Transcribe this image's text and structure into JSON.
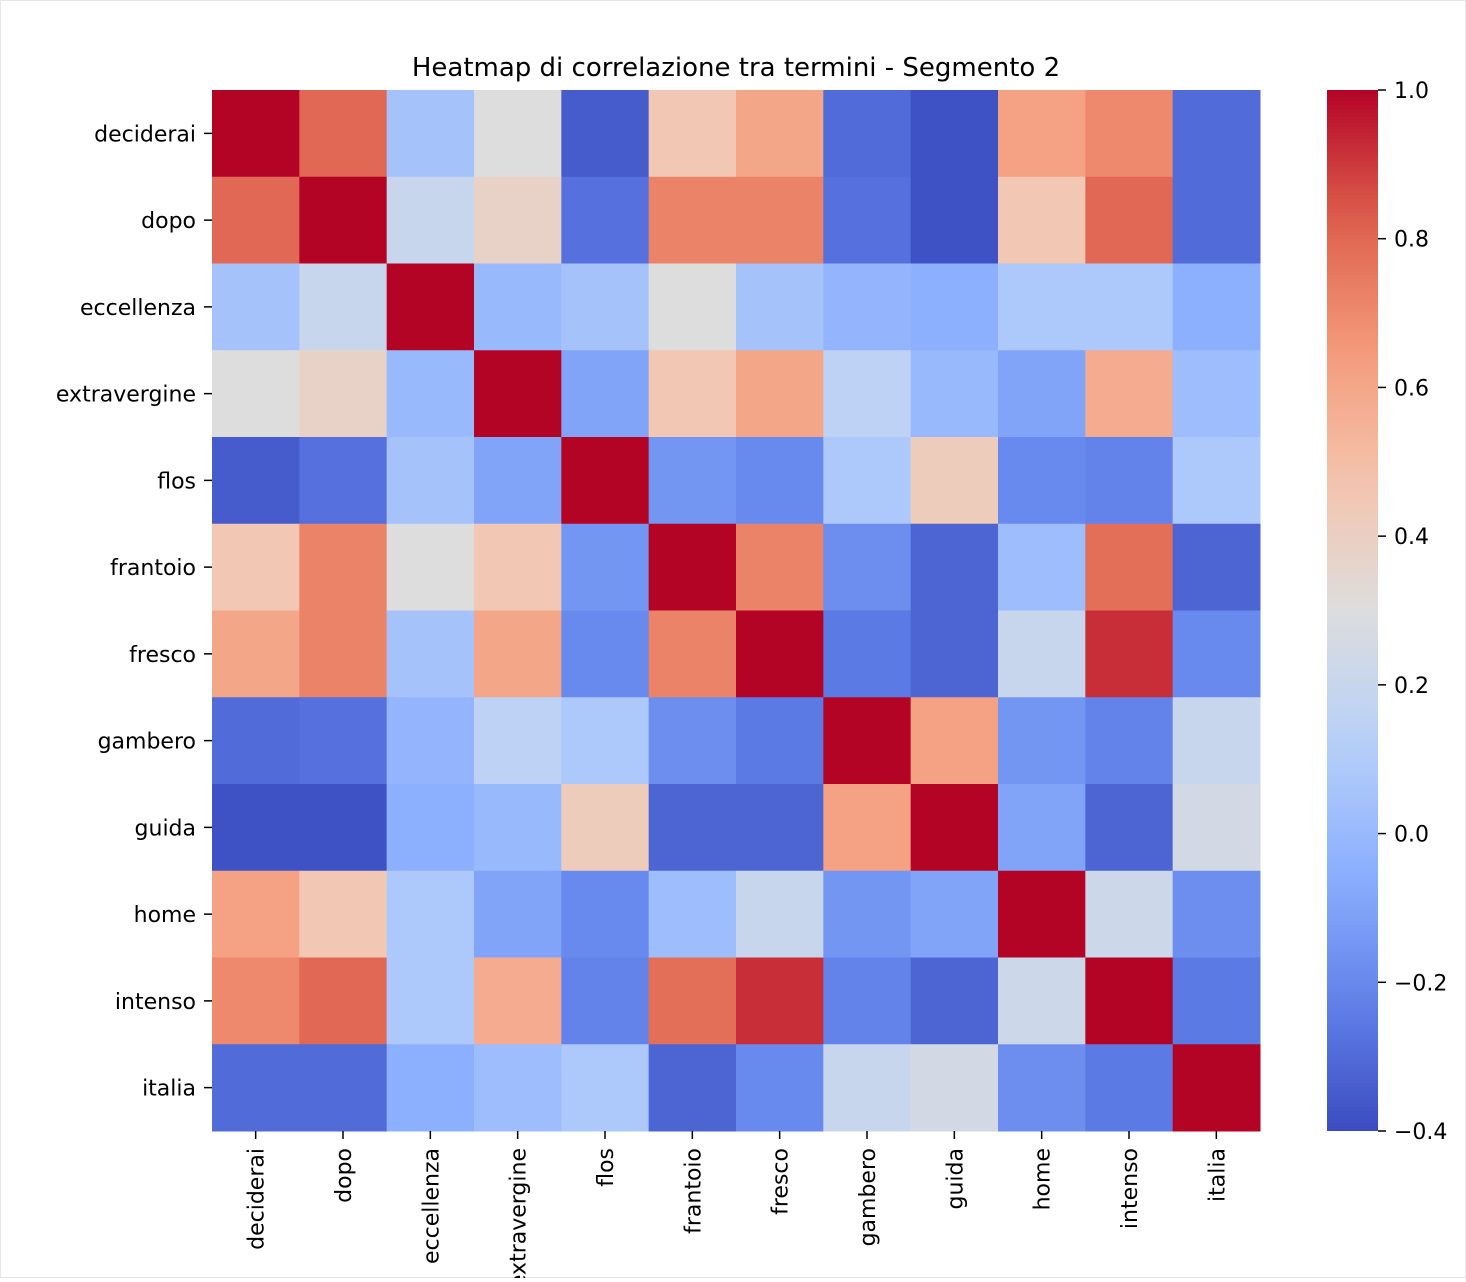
{
  "chart_data": {
    "type": "heatmap",
    "title": "Heatmap di correlazione tra termini - Segmento 2",
    "xlabel": "",
    "ylabel": "",
    "colormap": "coolwarm",
    "color_range": [
      -0.4,
      1.0
    ],
    "colorbar_ticks": [
      1.0,
      0.8,
      0.6,
      0.4,
      0.2,
      0.0,
      -0.2,
      -0.4
    ],
    "colorbar_tick_labels": [
      "1.0",
      "0.8",
      "0.6",
      "0.4",
      "0.2",
      "0.0",
      "−0.2",
      "−0.4"
    ],
    "legend": "colorbar-right",
    "x_categories": [
      "deciderai",
      "dopo",
      "eccellenza",
      "extravergine",
      "flos",
      "frantoio",
      "fresco",
      "gambero",
      "guida",
      "home",
      "intenso",
      "italia"
    ],
    "y_categories": [
      "deciderai",
      "dopo",
      "eccellenza",
      "extravergine",
      "flos",
      "frantoio",
      "fresco",
      "gambero",
      "guida",
      "home",
      "intenso",
      "italia"
    ],
    "values": [
      [
        1.0,
        0.8,
        0.05,
        0.3,
        -0.35,
        0.45,
        0.6,
        -0.3,
        -0.38,
        0.62,
        0.7,
        -0.3
      ],
      [
        0.8,
        1.0,
        0.2,
        0.38,
        -0.28,
        0.72,
        0.72,
        -0.28,
        -0.38,
        0.45,
        0.8,
        -0.3
      ],
      [
        0.05,
        0.2,
        1.0,
        0.0,
        0.05,
        0.3,
        0.05,
        -0.02,
        -0.05,
        0.08,
        0.08,
        -0.05
      ],
      [
        0.3,
        0.38,
        0.0,
        1.0,
        -0.1,
        0.45,
        0.6,
        0.15,
        0.0,
        -0.1,
        0.58,
        0.02
      ],
      [
        -0.35,
        -0.28,
        0.05,
        -0.1,
        1.0,
        -0.15,
        -0.2,
        0.08,
        0.42,
        -0.2,
        -0.22,
        0.08
      ],
      [
        0.45,
        0.72,
        0.3,
        0.45,
        -0.15,
        1.0,
        0.72,
        -0.18,
        -0.32,
        0.02,
        0.78,
        -0.32
      ],
      [
        0.6,
        0.72,
        0.05,
        0.6,
        -0.2,
        0.72,
        1.0,
        -0.25,
        -0.32,
        0.2,
        0.92,
        -0.2
      ],
      [
        -0.3,
        -0.28,
        -0.02,
        0.15,
        0.08,
        -0.18,
        -0.25,
        1.0,
        0.62,
        -0.15,
        -0.22,
        0.2
      ],
      [
        -0.38,
        -0.38,
        -0.05,
        0.0,
        0.42,
        -0.32,
        -0.32,
        0.62,
        1.0,
        -0.1,
        -0.32,
        0.25
      ],
      [
        0.62,
        0.45,
        0.08,
        -0.1,
        -0.2,
        0.02,
        0.2,
        -0.15,
        -0.1,
        1.0,
        0.22,
        -0.18
      ],
      [
        0.7,
        0.8,
        0.08,
        0.58,
        -0.22,
        0.78,
        0.92,
        -0.22,
        -0.32,
        0.22,
        1.0,
        -0.25
      ],
      [
        -0.3,
        -0.3,
        -0.05,
        0.02,
        0.08,
        -0.32,
        -0.2,
        0.2,
        0.25,
        -0.18,
        -0.25,
        1.0
      ]
    ]
  }
}
